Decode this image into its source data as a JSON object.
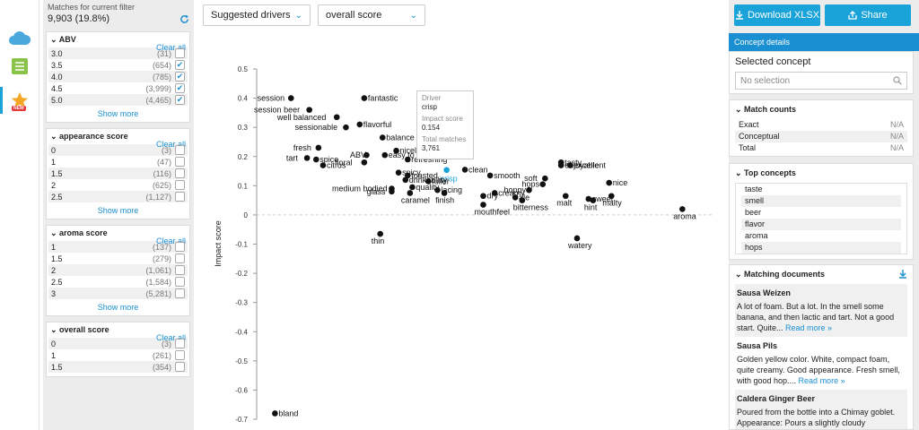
{
  "rail": {
    "icons": [
      "cloud-icon",
      "table-icon",
      "star-icon"
    ],
    "new_badge": "NEW"
  },
  "filters": {
    "match_label": "Matches for current filter",
    "match_value": "9,903 (19.8%)",
    "groups": [
      {
        "title": "ABV",
        "clear": "Clear all",
        "show_more": "Show more",
        "rows": [
          {
            "label": "3.0",
            "count": "(31)",
            "checked": false
          },
          {
            "label": "3.5",
            "count": "(654)",
            "checked": true
          },
          {
            "label": "4.0",
            "count": "(785)",
            "checked": true
          },
          {
            "label": "4.5",
            "count": "(3,999)",
            "checked": true
          },
          {
            "label": "5.0",
            "count": "(4,465)",
            "checked": true
          }
        ]
      },
      {
        "title": "appearance score",
        "clear": "Clear all",
        "show_more": "Show more",
        "rows": [
          {
            "label": "0",
            "count": "(3)",
            "checked": false
          },
          {
            "label": "1",
            "count": "(47)",
            "checked": false
          },
          {
            "label": "1.5",
            "count": "(116)",
            "checked": false
          },
          {
            "label": "2",
            "count": "(625)",
            "checked": false
          },
          {
            "label": "2.5",
            "count": "(1,127)",
            "checked": false
          }
        ]
      },
      {
        "title": "aroma score",
        "clear": "Clear all",
        "show_more": "Show more",
        "rows": [
          {
            "label": "1",
            "count": "(137)",
            "checked": false
          },
          {
            "label": "1.5",
            "count": "(279)",
            "checked": false
          },
          {
            "label": "2",
            "count": "(1,061)",
            "checked": false
          },
          {
            "label": "2.5",
            "count": "(1,584)",
            "checked": false
          },
          {
            "label": "3",
            "count": "(5,281)",
            "checked": false
          }
        ]
      },
      {
        "title": "overall score",
        "clear": "Clear all",
        "show_more": "",
        "rows": [
          {
            "label": "0",
            "count": "(3)",
            "checked": false
          },
          {
            "label": "1",
            "count": "(261)",
            "checked": false
          },
          {
            "label": "1.5",
            "count": "(354)",
            "checked": false
          }
        ]
      }
    ]
  },
  "toolbar": {
    "view_select": "Suggested drivers",
    "score_select": "overall score"
  },
  "chart_data": {
    "type": "scatter",
    "ylabel": "Impact score",
    "ylim": [
      -0.7,
      0.5
    ],
    "yticks": [
      "0.5",
      "0.4",
      "0.3",
      "0.2",
      "0.1",
      "0",
      "-0.1",
      "-0.2",
      "-0.3",
      "-0.4",
      "-0.5",
      "-0.6",
      "-0.7"
    ],
    "highlight_color": "#1aa3d9",
    "points": [
      {
        "label": "session",
        "x": 0.075,
        "y": 0.4
      },
      {
        "label": "session beer",
        "x": 0.115,
        "y": 0.36
      },
      {
        "label": "well balanced",
        "x": 0.175,
        "y": 0.335
      },
      {
        "label": "fantastic",
        "x": 0.235,
        "y": 0.4
      },
      {
        "label": "flavorful",
        "x": 0.225,
        "y": 0.31
      },
      {
        "label": "sessionable",
        "x": 0.195,
        "y": 0.3
      },
      {
        "label": "balance",
        "x": 0.275,
        "y": 0.265
      },
      {
        "label": "fresh",
        "x": 0.135,
        "y": 0.23
      },
      {
        "label": "nicely",
        "x": 0.305,
        "y": 0.22
      },
      {
        "label": "ABV",
        "x": 0.24,
        "y": 0.205
      },
      {
        "label": "easy to",
        "x": 0.28,
        "y": 0.205
      },
      {
        "label": "refreshing",
        "x": 0.33,
        "y": 0.19
      },
      {
        "label": "tart",
        "x": 0.11,
        "y": 0.195
      },
      {
        "label": "spice",
        "x": 0.13,
        "y": 0.19
      },
      {
        "label": "citrus",
        "x": 0.145,
        "y": 0.17
      },
      {
        "label": "floral",
        "x": 0.235,
        "y": 0.18
      },
      {
        "label": "crisp",
        "x": 0.415,
        "y": 0.154,
        "highlight": true
      },
      {
        "label": "clean",
        "x": 0.455,
        "y": 0.155
      },
      {
        "label": "smooth",
        "x": 0.51,
        "y": 0.135
      },
      {
        "label": "spicy",
        "x": 0.31,
        "y": 0.145
      },
      {
        "label": "toasted",
        "x": 0.33,
        "y": 0.135
      },
      {
        "label": "drinkability",
        "x": 0.325,
        "y": 0.12
      },
      {
        "label": "fuller",
        "x": 0.375,
        "y": 0.115
      },
      {
        "label": "medium bodied",
        "x": 0.295,
        "y": 0.09
      },
      {
        "label": "quality",
        "x": 0.34,
        "y": 0.095
      },
      {
        "label": "glass",
        "x": 0.295,
        "y": 0.08
      },
      {
        "label": "caramel",
        "x": 0.335,
        "y": 0.075
      },
      {
        "label": "lacing",
        "x": 0.395,
        "y": 0.085
      },
      {
        "label": "finish",
        "x": 0.41,
        "y": 0.075
      },
      {
        "label": "dry",
        "x": 0.495,
        "y": 0.065
      },
      {
        "label": "creamy",
        "x": 0.52,
        "y": 0.075
      },
      {
        "label": "ale",
        "x": 0.565,
        "y": 0.06
      },
      {
        "label": "bitterness",
        "x": 0.58,
        "y": 0.05
      },
      {
        "label": "mouthfeel",
        "x": 0.495,
        "y": 0.035
      },
      {
        "label": "hoppy",
        "x": 0.595,
        "y": 0.085
      },
      {
        "label": "hops",
        "x": 0.625,
        "y": 0.105
      },
      {
        "label": "soft",
        "x": 0.63,
        "y": 0.125
      },
      {
        "label": "tasty",
        "x": 0.665,
        "y": 0.18
      },
      {
        "label": "enjoyable",
        "x": 0.665,
        "y": 0.17
      },
      {
        "label": "excellent",
        "x": 0.685,
        "y": 0.17
      },
      {
        "label": "malt",
        "x": 0.675,
        "y": 0.065
      },
      {
        "label": "sweet",
        "x": 0.725,
        "y": 0.055
      },
      {
        "label": "hint",
        "x": 0.735,
        "y": 0.05
      },
      {
        "label": "malty",
        "x": 0.775,
        "y": 0.065
      },
      {
        "label": "nice",
        "x": 0.77,
        "y": 0.11
      },
      {
        "label": "aroma",
        "x": 0.93,
        "y": 0.02
      },
      {
        "label": "thin",
        "x": 0.27,
        "y": -0.065
      },
      {
        "label": "watery",
        "x": 0.7,
        "y": -0.08
      },
      {
        "label": "bland",
        "x": 0.04,
        "y": -0.68
      }
    ]
  },
  "tooltip": {
    "driver_label": "Driver",
    "driver": "crisp",
    "impact_label": "Impact score",
    "impact": "0.154",
    "matches_label": "Total matches",
    "matches": "3,761"
  },
  "right": {
    "download": "Download XLSX",
    "share": "Share",
    "tab": "Concept details",
    "selected_title": "Selected concept",
    "search_placeholder": "No selection",
    "match_counts_title": "Match counts",
    "match_counts": [
      {
        "k": "Exact",
        "v": "N/A"
      },
      {
        "k": "Conceptual",
        "v": "N/A"
      },
      {
        "k": "Total",
        "v": "N/A"
      }
    ],
    "top_concepts_title": "Top concepts",
    "top_concepts": [
      "taste",
      "smell",
      "beer",
      "flavor",
      "aroma",
      "hops"
    ],
    "docs_title": "Matching documents",
    "read_more": "Read more »",
    "docs": [
      {
        "title": "Sausa Weizen",
        "text": "A lot of foam. But a lot. In the smell some banana, and then lactic and tart. Not a good start. Quite... "
      },
      {
        "title": "Sausa Pils",
        "text": "Golden yellow color. White, compact foam, quite creamy. Good appearance. Fresh smell, with good hop.... "
      },
      {
        "title": "Caldera Ginger Beer",
        "text": "Poured from the bottle into a Chimay goblet. Appearance: Pours a slightly cloudy"
      }
    ]
  }
}
